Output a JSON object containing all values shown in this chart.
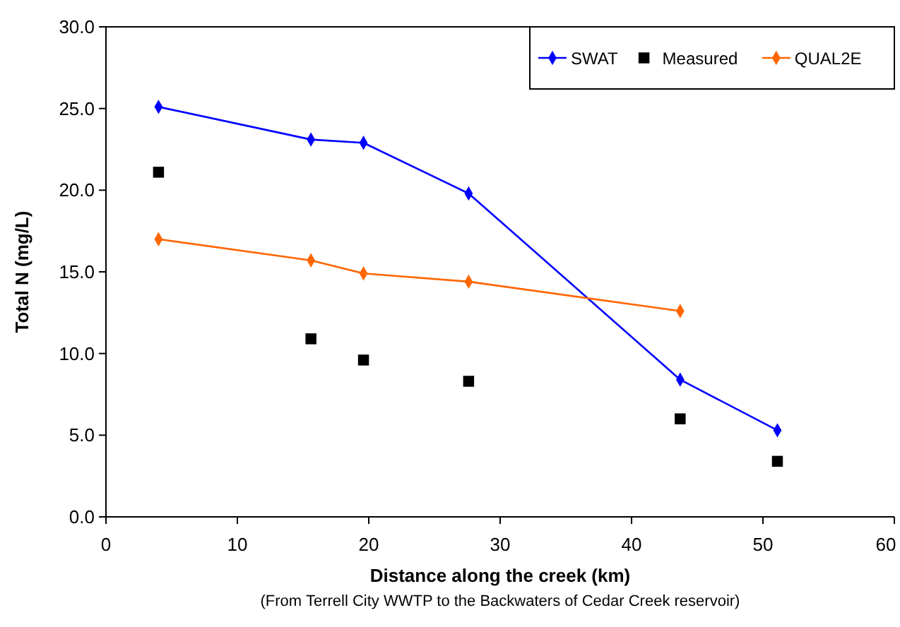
{
  "chart_data": {
    "type": "line",
    "xlabel": "Distance along the creek (km)",
    "ylabel": "Total N (mg/L)",
    "annotations": [
      "(From Terrell City WWTP to the Backwaters of Cedar Creek reservoir)"
    ],
    "xlim": [
      0,
      60
    ],
    "xticks": [
      0,
      10,
      20,
      30,
      40,
      50,
      60
    ],
    "ylim": [
      0,
      30
    ],
    "yticks": [
      {
        "value": 0,
        "label": "0.0"
      },
      {
        "value": 5,
        "label": "5.0"
      },
      {
        "value": 10,
        "label": "10.0"
      },
      {
        "value": 15,
        "label": "15.0"
      },
      {
        "value": 20,
        "label": "20.0"
      },
      {
        "value": 25,
        "label": "25.0"
      },
      {
        "value": 30,
        "label": "30.0"
      }
    ],
    "grid": false,
    "legend": "top right",
    "series": [
      {
        "name": "SWAT",
        "color": "#0000ff",
        "marker": "diamond",
        "x": [
          4.0,
          15.6,
          19.6,
          27.6,
          43.7,
          51.1
        ],
        "values": [
          25.1,
          23.1,
          22.9,
          19.8,
          8.4,
          5.3
        ]
      },
      {
        "name": "Measured",
        "type": "scatter",
        "color": "#000000",
        "marker": "square",
        "x": [
          4.0,
          15.6,
          19.6,
          27.6,
          43.7,
          51.1
        ],
        "values": [
          21.1,
          10.9,
          9.6,
          8.3,
          6.0,
          3.4
        ]
      },
      {
        "name": "QUAL2E",
        "color": "#ff6600",
        "marker": "diamond",
        "x": [
          4.0,
          15.6,
          19.6,
          27.6,
          43.7
        ],
        "values": [
          17.0,
          15.7,
          14.9,
          14.4,
          12.6
        ]
      }
    ]
  }
}
